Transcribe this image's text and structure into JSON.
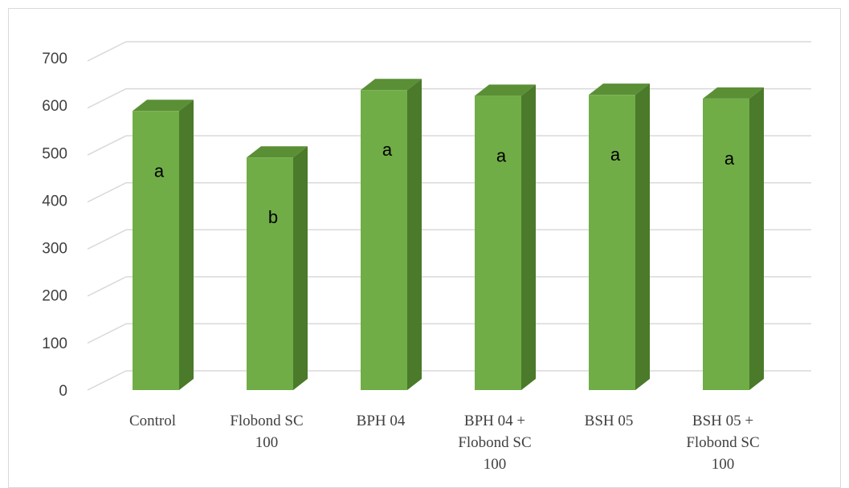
{
  "chart_data": {
    "type": "bar",
    "style": "3d-column",
    "categories": [
      [
        "Control"
      ],
      [
        "Flobond SC",
        "100"
      ],
      [
        "BPH 04"
      ],
      [
        "BPH 04 +",
        "Flobond SC",
        "100"
      ],
      [
        "BSH 05"
      ],
      [
        "BSH 05 +",
        "Flobond SC",
        "100"
      ]
    ],
    "values": [
      588,
      490,
      632,
      620,
      622,
      614
    ],
    "data_labels": [
      "a",
      "b",
      "a",
      "a",
      "a",
      "a"
    ],
    "yticks": [
      "0",
      "100",
      "200",
      "300",
      "400",
      "500",
      "600",
      "700"
    ],
    "ylim": [
      0,
      700
    ],
    "grid": true,
    "legend": false,
    "colors": {
      "front": "#70ad47",
      "side": "#4a7a2a",
      "top": "#5b8f36",
      "grid": "#d9d9d9"
    }
  }
}
